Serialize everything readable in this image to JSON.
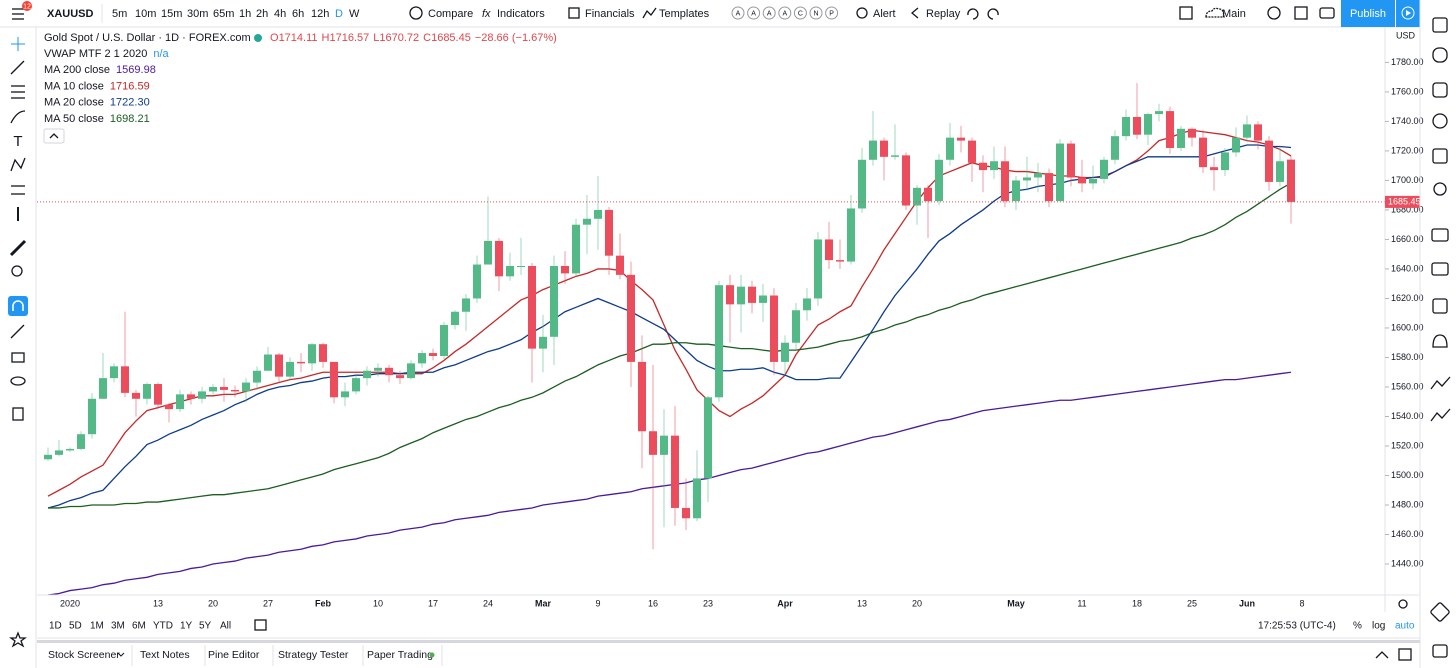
{
  "toolbar": {
    "badge": "12",
    "symbol": "XAUUSD",
    "intervals": [
      "5m",
      "10m",
      "15m",
      "30m",
      "65m",
      "1h",
      "2h",
      "4h",
      "6h",
      "12h",
      "D",
      "W"
    ],
    "active_interval": "D",
    "compare": "Compare",
    "indicators": "Indicators",
    "financials": "Financials",
    "templates": "Templates",
    "template_letters": [
      "A",
      "A",
      "A",
      "A",
      "C",
      "N",
      "P"
    ],
    "alert": "Alert",
    "replay": "Replay",
    "layout": "Main",
    "publish": "Publish"
  },
  "legend": {
    "title": "Gold Spot / U.S. Dollar · 1D · FOREX.com",
    "ohlc_labels": [
      "O",
      "H",
      "L",
      "C"
    ],
    "change": "−28.66 (−1.67%)",
    "vwap": "VWAP MTF 2 1 2020",
    "vwap_value": "n/a"
  },
  "chart_data": {
    "type": "candlestick",
    "up_color": "#53b987",
    "down_color": "#eb4d5c",
    "grid": false,
    "y_axis_label": "USD",
    "ylim": [
      1419,
      1804
    ],
    "yticks": [
      {
        "value": 1440,
        "label": "1440.00"
      },
      {
        "value": 1460,
        "label": "1460.00"
      },
      {
        "value": 1480,
        "label": "1480.00"
      },
      {
        "value": 1500,
        "label": "1500.00"
      },
      {
        "value": 1520,
        "label": "1520.00"
      },
      {
        "value": 1540,
        "label": "1540.00"
      },
      {
        "value": 1560,
        "label": "1560.00"
      },
      {
        "value": 1580,
        "label": "1580.00"
      },
      {
        "value": 1600,
        "label": "1600.00"
      },
      {
        "value": 1620,
        "label": "1620.00"
      },
      {
        "value": 1640,
        "label": "1640.00"
      },
      {
        "value": 1660,
        "label": "1660.00"
      },
      {
        "value": 1680,
        "label": "1680.00"
      },
      {
        "value": 1700,
        "label": "1700.00"
      },
      {
        "value": 1720,
        "label": "1720.00"
      },
      {
        "value": 1740,
        "label": "1740.00"
      },
      {
        "value": 1760,
        "label": "1760.00"
      },
      {
        "value": 1780,
        "label": "1780.00"
      }
    ],
    "categories": [
      null,
      null,
      "2020",
      null,
      null,
      null,
      null,
      null,
      null,
      null,
      "13",
      null,
      null,
      null,
      null,
      "20",
      null,
      null,
      null,
      null,
      "27",
      null,
      null,
      null,
      null,
      "Feb",
      null,
      null,
      null,
      null,
      "10",
      null,
      null,
      null,
      null,
      "17",
      null,
      null,
      null,
      null,
      "24",
      null,
      null,
      null,
      null,
      "Mar",
      null,
      null,
      null,
      null,
      "9",
      null,
      null,
      null,
      null,
      "16",
      null,
      null,
      null,
      null,
      "23",
      null,
      null,
      null,
      null,
      null,
      null,
      "Apr",
      null,
      null,
      null,
      null,
      null,
      null,
      "13",
      null,
      null,
      null,
      null,
      "20",
      null,
      null,
      null,
      null,
      null,
      null,
      null,
      null,
      "May",
      null,
      null,
      null,
      null,
      null,
      "11",
      null,
      null,
      null,
      null,
      "18",
      null,
      null,
      null,
      null,
      "25",
      null,
      null,
      null,
      null,
      "Jun",
      null,
      null,
      null,
      null,
      "8"
    ],
    "open": [
      1511,
      1514,
      1517,
      1518,
      1528,
      1552,
      1566,
      1574,
      1556,
      1552,
      1562,
      1548,
      1545,
      1555,
      1552,
      1557,
      1560,
      1558,
      1557,
      1563,
      1571,
      1582,
      1567,
      1577,
      1576,
      1589,
      1577,
      1553,
      1557,
      1566,
      1571,
      1573,
      1568,
      1566,
      1576,
      1583,
      1581,
      1602,
      1611,
      1620,
      1643,
      1659,
      1635,
      1642,
      1642,
      1586,
      1594,
      1642,
      1637,
      1670,
      1674,
      1680,
      1649,
      1636,
      1577,
      1530,
      1514,
      1527,
      1478,
      1471,
      1498,
      1553,
      1629,
      1616,
      1628,
      1617,
      1622,
      1577,
      1590,
      1612,
      1620,
      1660,
      1646,
      1645,
      1681,
      1714,
      1727,
      1716,
      1717,
      1683,
      1695,
      1686,
      1714,
      1729,
      1727,
      1712,
      1707,
      1713,
      1686,
      1700,
      1702,
      1705,
      1686,
      1725,
      1702,
      1698,
      1701,
      1714,
      1730,
      1743,
      1731,
      1745,
      1747,
      1722,
      1735,
      1729,
      1709,
      1707,
      1719,
      1729,
      1738,
      1727,
      1699,
      1714.11,
      null
    ],
    "high": [
      1519,
      1524,
      1519,
      1530,
      1556,
      1583,
      1576,
      1611,
      1558,
      1563,
      1563,
      1549,
      1558,
      1557,
      1560,
      1562,
      1566,
      1561,
      1566,
      1574,
      1587,
      1583,
      1580,
      1583,
      1590,
      1590,
      1577,
      1563,
      1568,
      1574,
      1576,
      1575,
      1571,
      1578,
      1585,
      1586,
      1604,
      1612,
      1623,
      1649,
      1689,
      1661,
      1651,
      1661,
      1644,
      1609,
      1649,
      1652,
      1674,
      1690,
      1703,
      1682,
      1664,
      1645,
      1595,
      1575,
      1545,
      1547,
      1498,
      1517,
      1554,
      1632,
      1636,
      1636,
      1632,
      1630,
      1627,
      1595,
      1617,
      1627,
      1665,
      1672,
      1660,
      1690,
      1722,
      1747,
      1729,
      1738,
      1719,
      1697,
      1697,
      1718,
      1739,
      1737,
      1729,
      1717,
      1723,
      1723,
      1703,
      1716,
      1712,
      1708,
      1728,
      1727,
      1714,
      1710,
      1716,
      1734,
      1748,
      1766,
      1746,
      1752,
      1750,
      1737,
      1736,
      1734,
      1716,
      1722,
      1736,
      1744,
      1740,
      1730,
      1723,
      1716.57,
      null
    ],
    "low": [
      1510,
      1513,
      1516,
      1517,
      1525,
      1552,
      1563,
      1553,
      1540,
      1548,
      1545,
      1536,
      1543,
      1548,
      1549,
      1555,
      1550,
      1553,
      1550,
      1558,
      1571,
      1563,
      1565,
      1570,
      1571,
      1573,
      1549,
      1547,
      1555,
      1561,
      1567,
      1563,
      1562,
      1565,
      1573,
      1578,
      1579,
      1599,
      1598,
      1617,
      1643,
      1625,
      1632,
      1636,
      1563,
      1570,
      1575,
      1630,
      1635,
      1650,
      1653,
      1636,
      1633,
      1560,
      1505,
      1450,
      1465,
      1466,
      1463,
      1469,
      1482,
      1550,
      1590,
      1597,
      1610,
      1604,
      1568,
      1568,
      1585,
      1605,
      1615,
      1640,
      1640,
      1643,
      1678,
      1710,
      1700,
      1714,
      1680,
      1670,
      1661,
      1683,
      1710,
      1719,
      1699,
      1692,
      1701,
      1682,
      1680,
      1693,
      1692,
      1682,
      1686,
      1696,
      1692,
      1694,
      1698,
      1711,
      1727,
      1728,
      1724,
      1740,
      1718,
      1720,
      1723,
      1705,
      1693,
      1703,
      1716,
      1726,
      1721,
      1693,
      1696,
      1670.72,
      null
    ],
    "close": [
      1514,
      1517,
      1518,
      1528,
      1552,
      1566,
      1574,
      1556,
      1552,
      1562,
      1548,
      1545,
      1555,
      1552,
      1557,
      1560,
      1558,
      1557,
      1563,
      1571,
      1582,
      1567,
      1577,
      1576,
      1589,
      1577,
      1553,
      1557,
      1566,
      1571,
      1573,
      1568,
      1566,
      1576,
      1583,
      1581,
      1602,
      1611,
      1620,
      1643,
      1659,
      1635,
      1642,
      1642,
      1586,
      1594,
      1642,
      1637,
      1670,
      1674,
      1680,
      1649,
      1636,
      1577,
      1530,
      1514,
      1527,
      1478,
      1471,
      1498,
      1553,
      1629,
      1616,
      1628,
      1617,
      1622,
      1577,
      1590,
      1612,
      1620,
      1660,
      1646,
      1645,
      1681,
      1714,
      1727,
      1716,
      1717,
      1683,
      1695,
      1686,
      1714,
      1729,
      1727,
      1712,
      1707,
      1713,
      1686,
      1700,
      1702,
      1705,
      1686,
      1725,
      1702,
      1698,
      1701,
      1714,
      1730,
      1743,
      1731,
      1745,
      1747,
      1722,
      1735,
      1729,
      1709,
      1707,
      1719,
      1729,
      1738,
      1727,
      1699,
      1713,
      1685.45,
      null
    ],
    "series": [
      {
        "name": "MA 200 close",
        "legend_value": "1569.98",
        "color": "#4a1a9a",
        "values": [
          1419,
          1420,
          1422,
          1423,
          1424,
          1426,
          1427,
          1429,
          1430,
          1431,
          1433,
          1434,
          1435,
          1437,
          1438,
          1440,
          1441,
          1442,
          1444,
          1445,
          1446,
          1448,
          1449,
          1450,
          1452,
          1453,
          1455,
          1456,
          1457,
          1459,
          1460,
          1461,
          1463,
          1464,
          1465,
          1467,
          1468,
          1470,
          1471,
          1472,
          1473,
          1475,
          1476,
          1477,
          1478,
          1480,
          1481,
          1482,
          1483,
          1484,
          1486,
          1487,
          1488,
          1489,
          1491,
          1492,
          1493,
          1494,
          1495,
          1497,
          1498,
          1500,
          1502,
          1504,
          1505,
          1507,
          1509,
          1511,
          1513,
          1515,
          1516,
          1518,
          1520,
          1522,
          1524,
          1526,
          1527,
          1529,
          1531,
          1533,
          1535,
          1537,
          1538,
          1540,
          1542,
          1544,
          1545,
          1546,
          1547,
          1548,
          1549,
          1550,
          1551,
          1551,
          1552,
          1553,
          1554,
          1555,
          1556,
          1557,
          1558,
          1559,
          1560,
          1561,
          1562,
          1563,
          1564,
          1565,
          1565,
          1566,
          1567,
          1568,
          1569,
          1569.98,
          null
        ]
      },
      {
        "name": "MA 10 close",
        "legend_value": "1716.59",
        "color": "#c62828",
        "values": [
          1486,
          1490,
          1494,
          1499,
          1503,
          1507,
          1518,
          1529,
          1537,
          1544,
          1546,
          1548,
          1550,
          1552,
          1554,
          1554,
          1555,
          1555,
          1557,
          1559,
          1561,
          1563,
          1565,
          1566,
          1568,
          1570,
          1570,
          1570,
          1570,
          1570,
          1570,
          1570,
          1569,
          1569,
          1569,
          1573,
          1578,
          1584,
          1589,
          1595,
          1601,
          1607,
          1613,
          1619,
          1622,
          1626,
          1629,
          1632,
          1635,
          1637,
          1640,
          1640,
          1639,
          1632,
          1626,
          1619,
          1602,
          1585,
          1572,
          1558,
          1551,
          1544,
          1540,
          1545,
          1549,
          1554,
          1561,
          1568,
          1582,
          1592,
          1602,
          1606,
          1611,
          1615,
          1628,
          1640,
          1653,
          1664,
          1675,
          1686,
          1695,
          1703,
          1706,
          1709,
          1712,
          1710,
          1709,
          1707,
          1706,
          1706,
          1705,
          1704,
          1703,
          1703,
          1702,
          1702,
          1702,
          1706,
          1710,
          1714,
          1720,
          1727,
          1729,
          1732,
          1734,
          1733,
          1732,
          1731,
          1729,
          1727,
          1726,
          1724,
          1721,
          1716.59,
          null
        ]
      },
      {
        "name": "MA 20 close",
        "legend_value": "1722.30",
        "color": "#0d3c8c",
        "values": [
          1478,
          1480,
          1483,
          1485,
          1488,
          1490,
          1498,
          1506,
          1513,
          1521,
          1524,
          1528,
          1531,
          1534,
          1538,
          1541,
          1544,
          1548,
          1551,
          1555,
          1558,
          1560,
          1561,
          1563,
          1564,
          1566,
          1567,
          1567,
          1568,
          1568,
          1569,
          1569,
          1569,
          1570,
          1570,
          1570,
          1573,
          1575,
          1578,
          1581,
          1584,
          1586,
          1589,
          1592,
          1597,
          1601,
          1606,
          1611,
          1614,
          1617,
          1620,
          1617,
          1614,
          1611,
          1607,
          1603,
          1599,
          1592,
          1585,
          1578,
          1574,
          1571,
          1571,
          1572,
          1572,
          1573,
          1570,
          1568,
          1565,
          1565,
          1565,
          1566,
          1566,
          1577,
          1588,
          1599,
          1611,
          1622,
          1631,
          1640,
          1650,
          1659,
          1664,
          1670,
          1675,
          1680,
          1686,
          1691,
          1693,
          1694,
          1696,
          1697,
          1698,
          1700,
          1701,
          1702,
          1703,
          1706,
          1710,
          1713,
          1716,
          1716,
          1716,
          1716,
          1716,
          1716,
          1718,
          1720,
          1722,
          1724,
          1724,
          1723,
          1723,
          1722.3,
          null
        ]
      },
      {
        "name": "MA 50 close",
        "legend_value": "1698.21",
        "color": "#1b5e20",
        "values": [
          1478,
          1478,
          1479,
          1479,
          1480,
          1480,
          1480,
          1481,
          1481,
          1482,
          1482,
          1483,
          1484,
          1485,
          1486,
          1487,
          1487,
          1488,
          1489,
          1490,
          1491,
          1493,
          1495,
          1497,
          1499,
          1501,
          1504,
          1506,
          1508,
          1510,
          1512,
          1515,
          1519,
          1522,
          1525,
          1529,
          1532,
          1535,
          1538,
          1540,
          1543,
          1546,
          1548,
          1551,
          1553,
          1556,
          1560,
          1564,
          1567,
          1571,
          1575,
          1578,
          1581,
          1583,
          1586,
          1589,
          1589,
          1590,
          1590,
          1589,
          1589,
          1588,
          1587,
          1586,
          1586,
          1585,
          1584,
          1585,
          1585,
          1586,
          1587,
          1589,
          1591,
          1592,
          1594,
          1597,
          1599,
          1602,
          1604,
          1607,
          1609,
          1612,
          1614,
          1617,
          1619,
          1622,
          1624,
          1626,
          1628,
          1630,
          1632,
          1634,
          1636,
          1638,
          1640,
          1642,
          1644,
          1646,
          1648,
          1650,
          1652,
          1654,
          1656,
          1658,
          1661,
          1663,
          1666,
          1670,
          1675,
          1679,
          1684,
          1689,
          1694,
          1698.21,
          null
        ]
      }
    ]
  },
  "bottom": {
    "ranges": [
      "1D",
      "5D",
      "1M",
      "3M",
      "6M",
      "YTD",
      "1Y",
      "5Y",
      "All"
    ],
    "clock": "17:25:53 (UTC-4)",
    "percent": "%",
    "log": "log",
    "auto": "auto",
    "tabs": [
      "Stock Screener",
      "Text Notes",
      "Pine Editor",
      "Strategy Tester",
      "Paper Trading"
    ]
  }
}
